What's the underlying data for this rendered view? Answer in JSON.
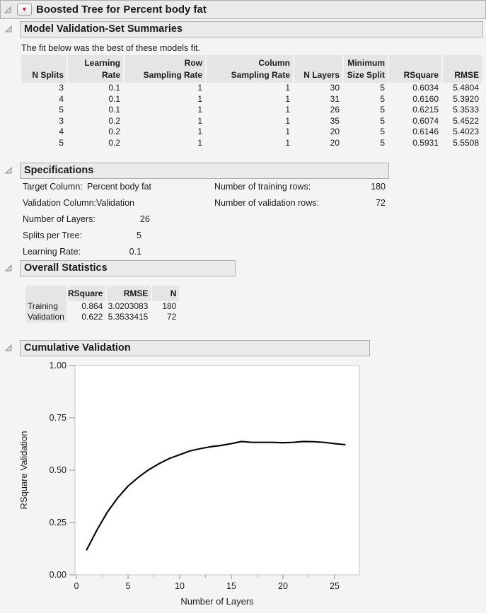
{
  "report": {
    "title": "Boosted Tree for Percent body fat"
  },
  "icons": {
    "red_triangle_glyph": "▼"
  },
  "colors": {
    "accent_red": "#c41e3a",
    "header_bar_fill": "#eaeaea",
    "table_header_fill": "#e5e5e5",
    "curve": "#000000",
    "plot_border": "#c6c6c6"
  },
  "model_summaries": {
    "heading": "Model Validation-Set Summaries",
    "note": "The fit below was the best of these models fit.",
    "table": {
      "columns": [
        {
          "top": "",
          "bottom": "N Splits"
        },
        {
          "top": "Learning",
          "bottom": "Rate"
        },
        {
          "top": "Row",
          "bottom": "Sampling Rate"
        },
        {
          "top": "Column",
          "bottom": "Sampling Rate"
        },
        {
          "top": "",
          "bottom": "N Layers"
        },
        {
          "top": "Minimum",
          "bottom": "Size Split"
        },
        {
          "top": "",
          "bottom": "RSquare"
        },
        {
          "top": "",
          "bottom": "RMSE"
        }
      ],
      "rows": [
        [
          "3",
          "0.1",
          "1",
          "1",
          "30",
          "5",
          "0.6034",
          "5.4804"
        ],
        [
          "4",
          "0.1",
          "1",
          "1",
          "31",
          "5",
          "0.6160",
          "5.3920"
        ],
        [
          "5",
          "0.1",
          "1",
          "1",
          "26",
          "5",
          "0.6215",
          "5.3533"
        ],
        [
          "3",
          "0.2",
          "1",
          "1",
          "35",
          "5",
          "0.6074",
          "5.4522"
        ],
        [
          "4",
          "0.2",
          "1",
          "1",
          "20",
          "5",
          "0.6146",
          "5.4023"
        ],
        [
          "5",
          "0.2",
          "1",
          "1",
          "20",
          "5",
          "0.5931",
          "5.5508"
        ]
      ]
    }
  },
  "specifications": {
    "heading": "Specifications",
    "left_items": [
      {
        "label": "Target Column:",
        "value": "Percent body fat",
        "align": "left"
      },
      {
        "label": "Validation Column:",
        "value": "Validation",
        "align": "left"
      },
      {
        "label": "Number of Layers:",
        "value": "26",
        "align": "right"
      },
      {
        "label": "Splits per Tree:",
        "value": "5",
        "align": "right"
      },
      {
        "label": "Learning Rate:",
        "value": "0.1",
        "align": "right"
      }
    ],
    "right_items": [
      {
        "label": "Number of training rows:",
        "value": "180",
        "align": "right"
      },
      {
        "label": "Number of validation rows:",
        "value": "72",
        "align": "right"
      }
    ]
  },
  "overall_statistics": {
    "heading": "Overall Statistics",
    "table": {
      "headers": [
        "",
        "RSquare",
        "RMSE",
        "N"
      ],
      "rows": [
        [
          "Training",
          "0.864",
          "3.0203083",
          "180"
        ],
        [
          "Validation",
          "0.622",
          "5.3533415",
          "72"
        ]
      ]
    }
  },
  "cumulative_validation": {
    "heading": "Cumulative Validation"
  },
  "chart_data": {
    "type": "line",
    "title": "Cumulative Validation",
    "xlabel": "Number of Layers",
    "ylabel": "RSquare Validation",
    "xlim": [
      0,
      27.3
    ],
    "ylim": [
      0,
      1
    ],
    "grid": false,
    "legend": false,
    "x_major_ticks": [
      0,
      5,
      10,
      15,
      20,
      25
    ],
    "x_minor_ticks": [
      2.5,
      7.5,
      12.5,
      17.5,
      22.5
    ],
    "y_ticks": [
      {
        "value": 0,
        "label": "0.00"
      },
      {
        "value": 0.25,
        "label": "0.25"
      },
      {
        "value": 0.5,
        "label": "0.50"
      },
      {
        "value": 0.75,
        "label": "0.75"
      },
      {
        "value": 1,
        "label": "1.00"
      }
    ],
    "line_color": "#000000",
    "series": [
      {
        "name": "RSquare Validation",
        "x": [
          1,
          2,
          3,
          4,
          5,
          6,
          7,
          8,
          9,
          10,
          11,
          12,
          13,
          14,
          15,
          16,
          17,
          18,
          19,
          20,
          21,
          22,
          23,
          24,
          25,
          26
        ],
        "y": [
          0.12,
          0.215,
          0.3,
          0.368,
          0.424,
          0.466,
          0.502,
          0.531,
          0.556,
          0.574,
          0.592,
          0.603,
          0.612,
          0.618,
          0.627,
          0.637,
          0.633,
          0.633,
          0.633,
          0.631,
          0.633,
          0.637,
          0.636,
          0.633,
          0.627,
          0.622
        ]
      }
    ]
  }
}
